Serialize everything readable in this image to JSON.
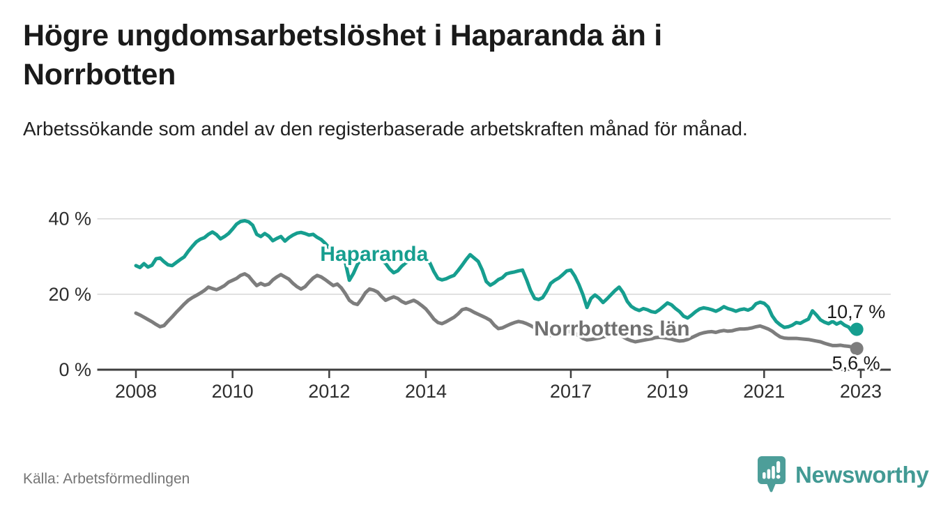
{
  "header": {
    "title": "Högre ungdomsarbetslöshet i Haparanda än i Norrbotten",
    "subtitle": "Arbetssökande som andel av den registerbaserade arbetskraften månad för månad."
  },
  "chart_data": {
    "type": "line",
    "unit": "%",
    "grid": "horizontal-only",
    "x_axis": {
      "range": [
        2007.2,
        2023.62
      ],
      "ticks": [
        2008,
        2010,
        2012,
        2014,
        2017,
        2019,
        2021,
        2023
      ]
    },
    "y_axis": {
      "range": [
        0,
        43
      ],
      "ticks": [
        0,
        20,
        40
      ],
      "tick_format": "{v} %"
    },
    "series": [
      {
        "id": "haparanda",
        "name": "Haparanda",
        "color": "#169e8f",
        "label_color": "#169e8f",
        "end_label": "10,7 %",
        "end_value": 10.7,
        "end_label_position": "above",
        "label_pos": {
          "x": 2012.93,
          "y": 30.7
        },
        "start_year": 2008,
        "points_per_year": 12,
        "values": [
          27.6,
          27.1,
          28.1,
          27.2,
          27.7,
          29.4,
          29.6,
          28.6,
          27.8,
          27.6,
          28.4,
          29.2,
          29.9,
          31.4,
          32.7,
          33.9,
          34.6,
          35.0,
          35.9,
          36.5,
          35.8,
          34.7,
          35.3,
          36.1,
          37.3,
          38.6,
          39.3,
          39.5,
          39.2,
          38.3,
          35.9,
          35.3,
          36.1,
          35.4,
          34.2,
          34.8,
          35.3,
          34.1,
          35.0,
          35.7,
          36.2,
          36.4,
          36.1,
          35.7,
          35.9,
          35.1,
          34.5,
          33.5,
          32.3,
          31.1,
          30.7,
          31.8,
          28.5,
          23.7,
          25.5,
          27.9,
          29.4,
          30.1,
          30.4,
          30.2,
          29.9,
          29.0,
          28.2,
          26.7,
          25.7,
          26.2,
          27.4,
          28.3,
          29.0,
          29.5,
          29.7,
          29.5,
          29.2,
          28.3,
          26.0,
          24.2,
          23.8,
          24.1,
          24.6,
          25.0,
          26.3,
          27.7,
          29.2,
          30.5,
          29.6,
          28.7,
          26.4,
          23.4,
          22.4,
          23.0,
          23.9,
          24.4,
          25.4,
          25.7,
          25.9,
          26.2,
          26.4,
          23.9,
          21.0,
          18.9,
          18.6,
          19.1,
          20.8,
          22.9,
          23.7,
          24.3,
          25.2,
          26.2,
          26.4,
          24.8,
          22.6,
          19.9,
          16.5,
          18.9,
          19.8,
          19.0,
          17.8,
          18.8,
          19.9,
          21.0,
          21.9,
          20.4,
          18.1,
          16.8,
          16.1,
          15.7,
          16.2,
          15.9,
          15.4,
          15.2,
          15.9,
          16.8,
          17.7,
          17.2,
          16.2,
          15.4,
          14.2,
          13.7,
          14.5,
          15.4,
          16.1,
          16.4,
          16.2,
          15.9,
          15.5,
          16.0,
          16.7,
          16.2,
          15.9,
          15.5,
          15.9,
          16.1,
          15.8,
          16.3,
          17.5,
          17.9,
          17.6,
          16.6,
          14.3,
          12.8,
          11.9,
          11.2,
          11.4,
          11.8,
          12.5,
          12.3,
          12.9,
          13.4,
          15.6,
          14.5,
          13.2,
          12.6,
          12.2,
          12.8,
          12.1,
          12.6,
          11.8,
          11.3,
          9.9,
          10.7
        ]
      },
      {
        "id": "norrbotten",
        "name": "Norrbottens län",
        "color": "#7d7d7d",
        "label_color": "#707070",
        "end_label": "5,6 %",
        "end_value": 5.6,
        "end_label_position": "below",
        "label_pos": {
          "x": 2017.85,
          "y": 10.9
        },
        "start_year": 2008,
        "points_per_year": 12,
        "values": [
          15.0,
          14.5,
          13.9,
          13.3,
          12.7,
          12.0,
          11.4,
          11.7,
          12.9,
          14.0,
          15.2,
          16.3,
          17.4,
          18.4,
          19.1,
          19.7,
          20.3,
          21.0,
          21.9,
          21.5,
          21.2,
          21.7,
          22.3,
          23.2,
          23.7,
          24.2,
          25.0,
          25.4,
          24.8,
          23.5,
          22.3,
          22.9,
          22.4,
          22.7,
          23.8,
          24.6,
          25.2,
          24.6,
          24.0,
          22.9,
          22.0,
          21.4,
          22.0,
          23.2,
          24.3,
          25.0,
          24.6,
          23.9,
          23.1,
          22.3,
          22.7,
          21.7,
          20.2,
          18.4,
          17.6,
          17.3,
          18.7,
          20.4,
          21.4,
          21.1,
          20.6,
          19.4,
          18.4,
          18.9,
          19.3,
          18.9,
          18.1,
          17.6,
          18.0,
          18.4,
          17.8,
          17.0,
          16.1,
          14.8,
          13.4,
          12.5,
          12.2,
          12.7,
          13.3,
          13.9,
          14.8,
          15.9,
          16.2,
          15.8,
          15.2,
          14.7,
          14.2,
          13.7,
          13.1,
          11.8,
          10.9,
          11.1,
          11.6,
          12.1,
          12.5,
          12.8,
          12.6,
          12.2,
          11.7,
          11.1,
          10.4,
          9.8,
          9.3,
          9.1,
          9.0,
          9.3,
          9.7,
          10.0,
          10.2,
          9.7,
          9.0,
          8.3,
          7.9,
          8.0,
          8.2,
          8.4,
          8.7,
          9.0,
          9.3,
          9.5,
          9.2,
          8.7,
          8.1,
          7.7,
          7.4,
          7.6,
          7.8,
          8.0,
          8.2,
          8.5,
          8.6,
          8.5,
          8.3,
          8.1,
          7.8,
          7.6,
          7.7,
          8.0,
          8.5,
          9.0,
          9.5,
          9.8,
          10.0,
          10.1,
          9.9,
          10.2,
          10.4,
          10.2,
          10.3,
          10.6,
          10.8,
          10.8,
          10.9,
          11.1,
          11.4,
          11.6,
          11.2,
          10.8,
          10.2,
          9.4,
          8.7,
          8.4,
          8.3,
          8.3,
          8.3,
          8.2,
          8.1,
          8.0,
          7.8,
          7.6,
          7.4,
          7.0,
          6.7,
          6.4,
          6.4,
          6.5,
          6.3,
          6.2,
          6.0,
          5.6
        ]
      }
    ],
    "style": {
      "grid_color": "#d9d9d9",
      "axis_color": "#3f3f3f",
      "tick_label_color": "#2e2e2e",
      "value_label_color": "#1a1a1a"
    }
  },
  "footer": {
    "source": "Källa: Arbetsförmedlingen",
    "brand": "Newsworthy",
    "brand_color": "#429a94",
    "logo_mark_color": "#4d9e99"
  }
}
